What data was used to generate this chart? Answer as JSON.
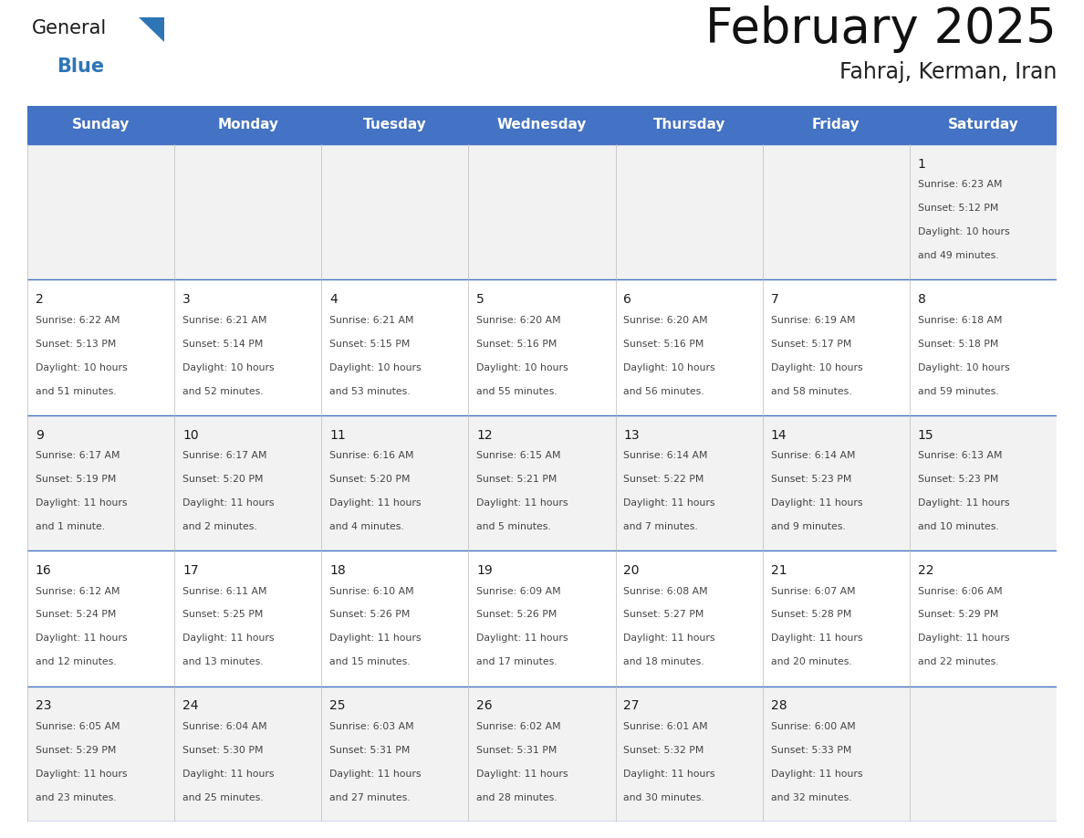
{
  "title": "February 2025",
  "subtitle": "Fahraj, Kerman, Iran",
  "header_bg": "#4472C4",
  "header_text_color": "#FFFFFF",
  "cell_bg_row0": "#F2F2F2",
  "cell_bg_row1": "#FFFFFF",
  "cell_bg_row2": "#F2F2F2",
  "cell_bg_row3": "#FFFFFF",
  "cell_bg_row4": "#F2F2F2",
  "day_names": [
    "Sunday",
    "Monday",
    "Tuesday",
    "Wednesday",
    "Thursday",
    "Friday",
    "Saturday"
  ],
  "days": [
    {
      "day": 1,
      "col": 6,
      "row": 0,
      "sunrise": "6:23 AM",
      "sunset": "5:12 PM",
      "daylight_h": "10 hours",
      "daylight_m": "49 minutes."
    },
    {
      "day": 2,
      "col": 0,
      "row": 1,
      "sunrise": "6:22 AM",
      "sunset": "5:13 PM",
      "daylight_h": "10 hours",
      "daylight_m": "51 minutes."
    },
    {
      "day": 3,
      "col": 1,
      "row": 1,
      "sunrise": "6:21 AM",
      "sunset": "5:14 PM",
      "daylight_h": "10 hours",
      "daylight_m": "52 minutes."
    },
    {
      "day": 4,
      "col": 2,
      "row": 1,
      "sunrise": "6:21 AM",
      "sunset": "5:15 PM",
      "daylight_h": "10 hours",
      "daylight_m": "53 minutes."
    },
    {
      "day": 5,
      "col": 3,
      "row": 1,
      "sunrise": "6:20 AM",
      "sunset": "5:16 PM",
      "daylight_h": "10 hours",
      "daylight_m": "55 minutes."
    },
    {
      "day": 6,
      "col": 4,
      "row": 1,
      "sunrise": "6:20 AM",
      "sunset": "5:16 PM",
      "daylight_h": "10 hours",
      "daylight_m": "56 minutes."
    },
    {
      "day": 7,
      "col": 5,
      "row": 1,
      "sunrise": "6:19 AM",
      "sunset": "5:17 PM",
      "daylight_h": "10 hours",
      "daylight_m": "58 minutes."
    },
    {
      "day": 8,
      "col": 6,
      "row": 1,
      "sunrise": "6:18 AM",
      "sunset": "5:18 PM",
      "daylight_h": "10 hours",
      "daylight_m": "59 minutes."
    },
    {
      "day": 9,
      "col": 0,
      "row": 2,
      "sunrise": "6:17 AM",
      "sunset": "5:19 PM",
      "daylight_h": "11 hours",
      "daylight_m": "1 minute."
    },
    {
      "day": 10,
      "col": 1,
      "row": 2,
      "sunrise": "6:17 AM",
      "sunset": "5:20 PM",
      "daylight_h": "11 hours",
      "daylight_m": "2 minutes."
    },
    {
      "day": 11,
      "col": 2,
      "row": 2,
      "sunrise": "6:16 AM",
      "sunset": "5:20 PM",
      "daylight_h": "11 hours",
      "daylight_m": "4 minutes."
    },
    {
      "day": 12,
      "col": 3,
      "row": 2,
      "sunrise": "6:15 AM",
      "sunset": "5:21 PM",
      "daylight_h": "11 hours",
      "daylight_m": "5 minutes."
    },
    {
      "day": 13,
      "col": 4,
      "row": 2,
      "sunrise": "6:14 AM",
      "sunset": "5:22 PM",
      "daylight_h": "11 hours",
      "daylight_m": "7 minutes."
    },
    {
      "day": 14,
      "col": 5,
      "row": 2,
      "sunrise": "6:14 AM",
      "sunset": "5:23 PM",
      "daylight_h": "11 hours",
      "daylight_m": "9 minutes."
    },
    {
      "day": 15,
      "col": 6,
      "row": 2,
      "sunrise": "6:13 AM",
      "sunset": "5:23 PM",
      "daylight_h": "11 hours",
      "daylight_m": "10 minutes."
    },
    {
      "day": 16,
      "col": 0,
      "row": 3,
      "sunrise": "6:12 AM",
      "sunset": "5:24 PM",
      "daylight_h": "11 hours",
      "daylight_m": "12 minutes."
    },
    {
      "day": 17,
      "col": 1,
      "row": 3,
      "sunrise": "6:11 AM",
      "sunset": "5:25 PM",
      "daylight_h": "11 hours",
      "daylight_m": "13 minutes."
    },
    {
      "day": 18,
      "col": 2,
      "row": 3,
      "sunrise": "6:10 AM",
      "sunset": "5:26 PM",
      "daylight_h": "11 hours",
      "daylight_m": "15 minutes."
    },
    {
      "day": 19,
      "col": 3,
      "row": 3,
      "sunrise": "6:09 AM",
      "sunset": "5:26 PM",
      "daylight_h": "11 hours",
      "daylight_m": "17 minutes."
    },
    {
      "day": 20,
      "col": 4,
      "row": 3,
      "sunrise": "6:08 AM",
      "sunset": "5:27 PM",
      "daylight_h": "11 hours",
      "daylight_m": "18 minutes."
    },
    {
      "day": 21,
      "col": 5,
      "row": 3,
      "sunrise": "6:07 AM",
      "sunset": "5:28 PM",
      "daylight_h": "11 hours",
      "daylight_m": "20 minutes."
    },
    {
      "day": 22,
      "col": 6,
      "row": 3,
      "sunrise": "6:06 AM",
      "sunset": "5:29 PM",
      "daylight_h": "11 hours",
      "daylight_m": "22 minutes."
    },
    {
      "day": 23,
      "col": 0,
      "row": 4,
      "sunrise": "6:05 AM",
      "sunset": "5:29 PM",
      "daylight_h": "11 hours",
      "daylight_m": "23 minutes."
    },
    {
      "day": 24,
      "col": 1,
      "row": 4,
      "sunrise": "6:04 AM",
      "sunset": "5:30 PM",
      "daylight_h": "11 hours",
      "daylight_m": "25 minutes."
    },
    {
      "day": 25,
      "col": 2,
      "row": 4,
      "sunrise": "6:03 AM",
      "sunset": "5:31 PM",
      "daylight_h": "11 hours",
      "daylight_m": "27 minutes."
    },
    {
      "day": 26,
      "col": 3,
      "row": 4,
      "sunrise": "6:02 AM",
      "sunset": "5:31 PM",
      "daylight_h": "11 hours",
      "daylight_m": "28 minutes."
    },
    {
      "day": 27,
      "col": 4,
      "row": 4,
      "sunrise": "6:01 AM",
      "sunset": "5:32 PM",
      "daylight_h": "11 hours",
      "daylight_m": "30 minutes."
    },
    {
      "day": 28,
      "col": 5,
      "row": 4,
      "sunrise": "6:00 AM",
      "sunset": "5:33 PM",
      "daylight_h": "11 hours",
      "daylight_m": "32 minutes."
    }
  ],
  "num_rows": 5,
  "num_cols": 7,
  "header_fontsize": 11,
  "day_num_fontsize": 10,
  "cell_text_fontsize": 7.8,
  "title_fontsize": 38,
  "subtitle_fontsize": 17,
  "logo_general_fontsize": 15,
  "logo_blue_fontsize": 15
}
